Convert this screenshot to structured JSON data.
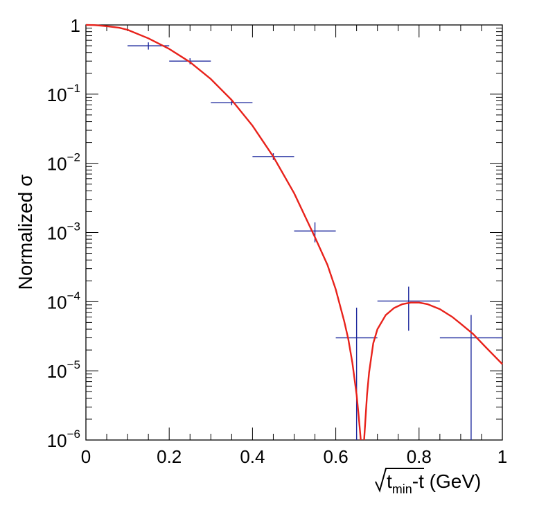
{
  "chart_data": {
    "type": "scatter",
    "ylabel": "Normalized σ",
    "xlabel": {
      "sqrt": "√",
      "main": "t",
      "sub": "min",
      "rest": "-t (GeV)"
    },
    "x_range": [
      0,
      1
    ],
    "y_range": [
      1e-06,
      1
    ],
    "y_scale": "log",
    "grid": false,
    "x_ticks": [
      {
        "value": 0,
        "label": "0"
      },
      {
        "value": 0.2,
        "label": "0.2"
      },
      {
        "value": 0.4,
        "label": "0.4"
      },
      {
        "value": 0.6,
        "label": "0.6"
      },
      {
        "value": 0.8,
        "label": "0.8"
      },
      {
        "value": 1,
        "label": "1"
      }
    ],
    "y_ticks": [
      {
        "value": 1,
        "base": "1",
        "exp": ""
      },
      {
        "value": 0.1,
        "base": "10",
        "exp": "−1"
      },
      {
        "value": 0.01,
        "base": "10",
        "exp": "−2"
      },
      {
        "value": 0.001,
        "base": "10",
        "exp": "−3"
      },
      {
        "value": 0.0001,
        "base": "10",
        "exp": "−4"
      },
      {
        "value": 1e-05,
        "base": "10",
        "exp": "−5"
      },
      {
        "value": 1e-06,
        "base": "10",
        "exp": "−6"
      }
    ],
    "series": [
      {
        "type": "errorbar",
        "color": "#1f2a9e",
        "points": [
          {
            "x": 0.15,
            "xerr": 0.05,
            "y": 0.5,
            "ylo": 0.44,
            "yhi": 0.56
          },
          {
            "x": 0.25,
            "xerr": 0.05,
            "y": 0.3,
            "ylo": 0.27,
            "yhi": 0.33
          },
          {
            "x": 0.35,
            "xerr": 0.05,
            "y": 0.075,
            "ylo": 0.069,
            "yhi": 0.081
          },
          {
            "x": 0.45,
            "xerr": 0.05,
            "y": 0.0125,
            "ylo": 0.0112,
            "yhi": 0.014
          },
          {
            "x": 0.55,
            "xerr": 0.05,
            "y": 0.00105,
            "ylo": 0.00072,
            "yhi": 0.0014
          },
          {
            "x": 0.65,
            "xerr": 0.05,
            "y": 3e-05,
            "ylo": 1e-06,
            "yhi": 8.2e-05
          },
          {
            "x": 0.775,
            "xerr": 0.075,
            "y": 0.000102,
            "ylo": 3.8e-05,
            "yhi": 0.000165
          },
          {
            "x": 0.925,
            "xerr": 0.075,
            "y": 3e-05,
            "ylo": 1e-06,
            "yhi": 6.4e-05
          }
        ]
      },
      {
        "type": "line",
        "color": "#e8221b",
        "points": [
          [
            0,
            1.0
          ],
          [
            0.02,
            0.995
          ],
          [
            0.05,
            0.96
          ],
          [
            0.08,
            0.91
          ],
          [
            0.1,
            0.85
          ],
          [
            0.15,
            0.64
          ],
          [
            0.2,
            0.45
          ],
          [
            0.25,
            0.29
          ],
          [
            0.3,
            0.165
          ],
          [
            0.35,
            0.082
          ],
          [
            0.4,
            0.035
          ],
          [
            0.45,
            0.0125
          ],
          [
            0.5,
            0.0037
          ],
          [
            0.55,
            0.00085
          ],
          [
            0.58,
            0.00034
          ],
          [
            0.6,
            0.00015
          ],
          [
            0.62,
            5.3e-05
          ],
          [
            0.63,
            2.9e-05
          ],
          [
            0.64,
            1.3e-05
          ],
          [
            0.65,
            4.5e-06
          ],
          [
            0.655,
            2.2e-06
          ],
          [
            0.66,
            1e-06
          ]
        ]
      },
      {
        "type": "line",
        "color": "#e8221b",
        "points": [
          [
            0.668,
            1e-06
          ],
          [
            0.675,
            4.5e-06
          ],
          [
            0.68,
            9.5e-06
          ],
          [
            0.69,
            2.5e-05
          ],
          [
            0.7,
            4e-05
          ],
          [
            0.72,
            6.4e-05
          ],
          [
            0.74,
            8.1e-05
          ],
          [
            0.76,
            9.2e-05
          ],
          [
            0.78,
            9.7e-05
          ],
          [
            0.8,
            9.7e-05
          ],
          [
            0.82,
            9.2e-05
          ],
          [
            0.85,
            7.8e-05
          ],
          [
            0.88,
            6e-05
          ],
          [
            0.9,
            4.8e-05
          ],
          [
            0.93,
            3.4e-05
          ],
          [
            0.96,
            2.2e-05
          ],
          [
            1.0,
            1.25e-05
          ]
        ]
      }
    ]
  }
}
